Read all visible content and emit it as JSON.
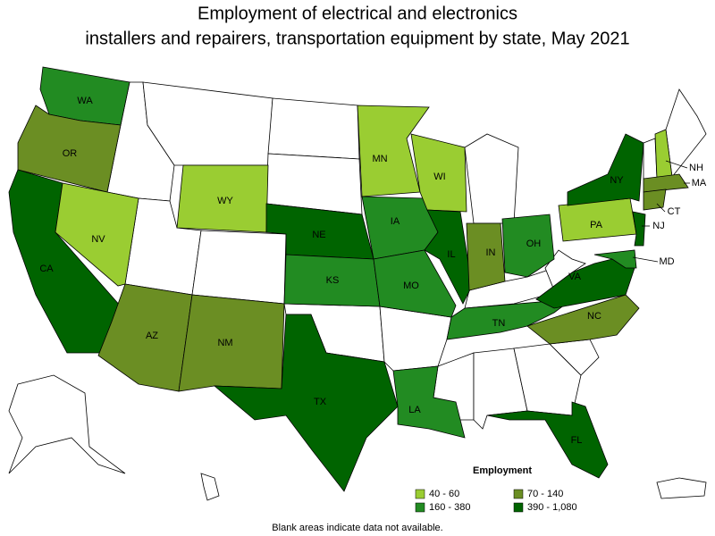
{
  "title": [
    "Employment of electrical and electronics",
    "installers and repairers, transportation equipment by state, May 2021"
  ],
  "states": [
    {
      "label": "WA",
      "color": "#228b22"
    },
    {
      "label": "OR",
      "color": "#6b8e23"
    },
    {
      "label": "CA",
      "color": "#006400"
    },
    {
      "label": "NV",
      "color": "#9acd32"
    },
    {
      "label": "WY",
      "color": "#9acd32"
    },
    {
      "label": "AZ",
      "color": "#6b8e23"
    },
    {
      "label": "NM",
      "color": "#6b8e23"
    },
    {
      "label": "NE",
      "color": "#006400"
    },
    {
      "label": "KS",
      "color": "#228b22"
    },
    {
      "label": "TX",
      "color": "#006400"
    },
    {
      "label": "MN",
      "color": "#9acd32"
    },
    {
      "label": "IA",
      "color": "#228b22"
    },
    {
      "label": "MO",
      "color": "#228b22"
    },
    {
      "label": "WI",
      "color": "#9acd32"
    },
    {
      "label": "IL",
      "color": "#006400"
    },
    {
      "label": "IN",
      "color": "#6b8e23"
    },
    {
      "label": "OH",
      "color": "#228b22"
    },
    {
      "label": "TN",
      "color": "#228b22"
    },
    {
      "label": "LA",
      "color": "#228b22"
    },
    {
      "label": "FL",
      "color": "#006400"
    },
    {
      "label": "NC",
      "color": "#6b8e23"
    },
    {
      "label": "VA",
      "color": "#006400"
    },
    {
      "label": "PA",
      "color": "#9acd32"
    },
    {
      "label": "NY",
      "color": "#006400"
    },
    {
      "label": "NJ",
      "color": "#006400"
    },
    {
      "label": "MD",
      "color": "#228b22"
    },
    {
      "label": "NH",
      "color": "#9acd32"
    },
    {
      "label": "MA",
      "color": "#6b8e23"
    },
    {
      "label": "CT",
      "color": "#6b8e23"
    }
  ],
  "legend": {
    "title": "Employment",
    "items": [
      {
        "label": "40 - 60",
        "color": "#9acd32"
      },
      {
        "label": "160 - 380",
        "color": "#228b22"
      },
      {
        "label": "70 - 140",
        "color": "#6b8e23"
      },
      {
        "label": "390 - 1,080",
        "color": "#006400"
      }
    ]
  },
  "footnote": "Blank areas indicate data not available."
}
